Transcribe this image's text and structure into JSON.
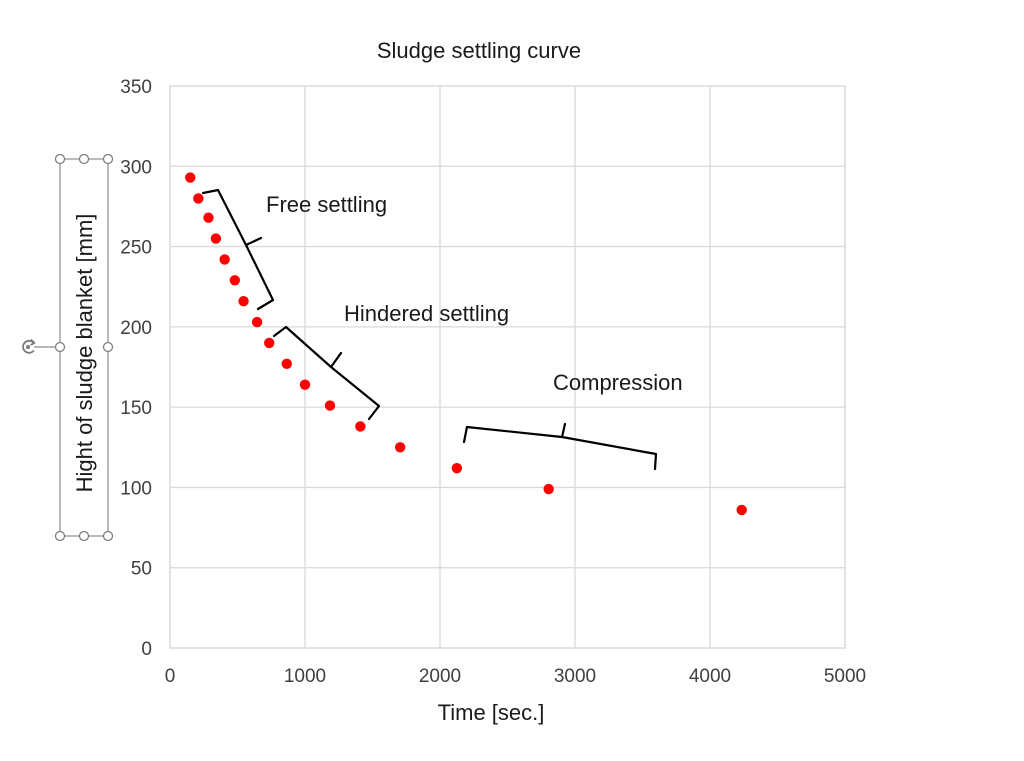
{
  "chart_data": {
    "type": "scatter",
    "title": "Sludge settling curve",
    "xlabel": "Time [sec.]",
    "ylabel": "Hight of sludge blanket [mm]",
    "xlim": [
      0,
      5000
    ],
    "ylim": [
      0,
      350
    ],
    "xticks": [
      "0",
      "1000",
      "2000",
      "3000",
      "4000",
      "5000"
    ],
    "yticks": [
      "0",
      "50",
      "100",
      "150",
      "200",
      "250",
      "300",
      "350"
    ],
    "grid": true,
    "legend": "none",
    "marker_color": "#ff0000",
    "series": [
      {
        "x": [
          150,
          210,
          285,
          340,
          405,
          480,
          545,
          645,
          735,
          865,
          1000,
          1185,
          1410,
          1705,
          2125,
          2805,
          4235
        ],
        "y": [
          293,
          280,
          268,
          255,
          242,
          229,
          216,
          203,
          190,
          177,
          164,
          151,
          138,
          125,
          112,
          99,
          86
        ]
      }
    ],
    "annotations": [
      {
        "id": "free",
        "text": "Free settling"
      },
      {
        "id": "hindered",
        "text": "Hindered settling"
      },
      {
        "id": "compression",
        "text": "Compression"
      }
    ]
  }
}
